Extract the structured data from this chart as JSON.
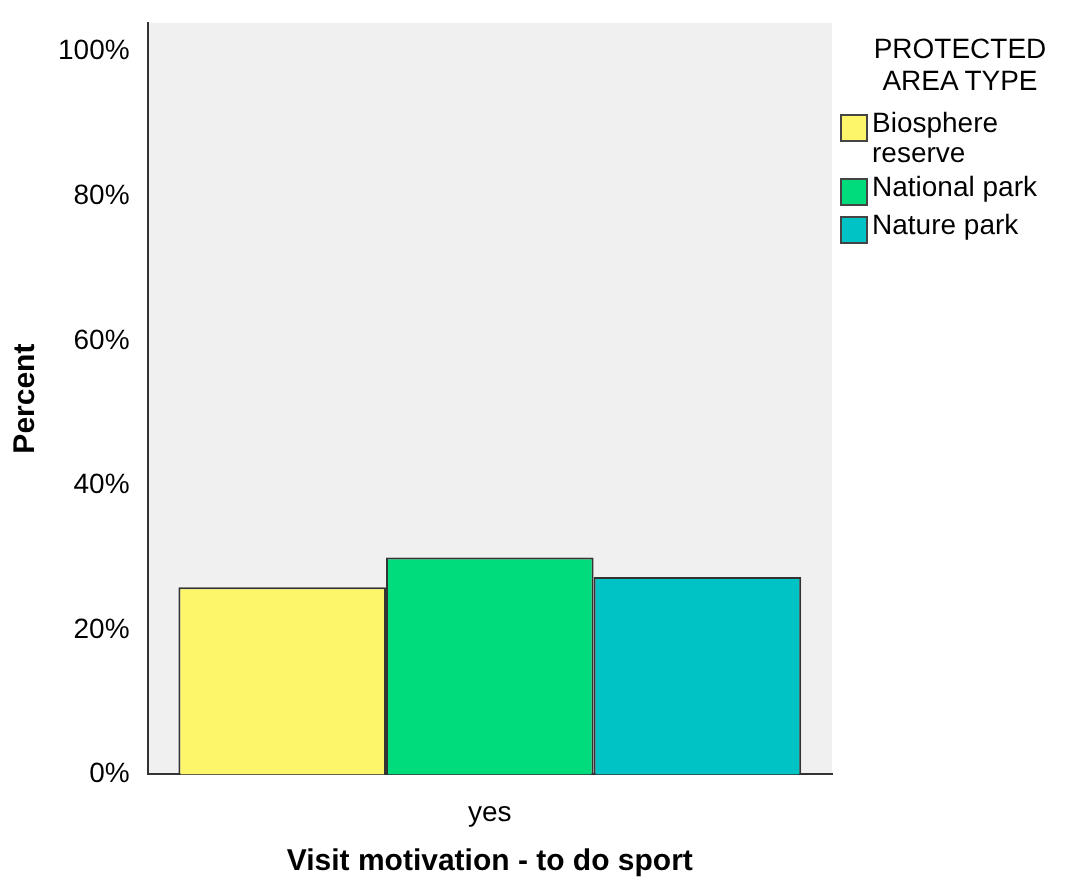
{
  "chart_data": {
    "type": "bar",
    "xlabel": "Visit motivation - to do sport",
    "ylabel": "Percent",
    "legend_title": "PROTECTED AREA TYPE",
    "legend": "right",
    "grid": false,
    "categories": [
      "yes"
    ],
    "series": [
      {
        "name": "Biosphere reserve",
        "color": "#fdf56a",
        "values": [
          25.9
        ]
      },
      {
        "name": "National park",
        "color": "#00dc7b",
        "values": [
          30.0
        ]
      },
      {
        "name": "Nature park",
        "color": "#00c3c5",
        "values": [
          27.3
        ]
      }
    ],
    "ylim": [
      0,
      104
    ],
    "yticks": [
      {
        "value": 0,
        "label": "0%"
      },
      {
        "value": 20,
        "label": "20%"
      },
      {
        "value": 40,
        "label": "40%"
      },
      {
        "value": 60,
        "label": "60%"
      },
      {
        "value": 80,
        "label": "80%"
      },
      {
        "value": 100,
        "label": "100%"
      }
    ]
  }
}
